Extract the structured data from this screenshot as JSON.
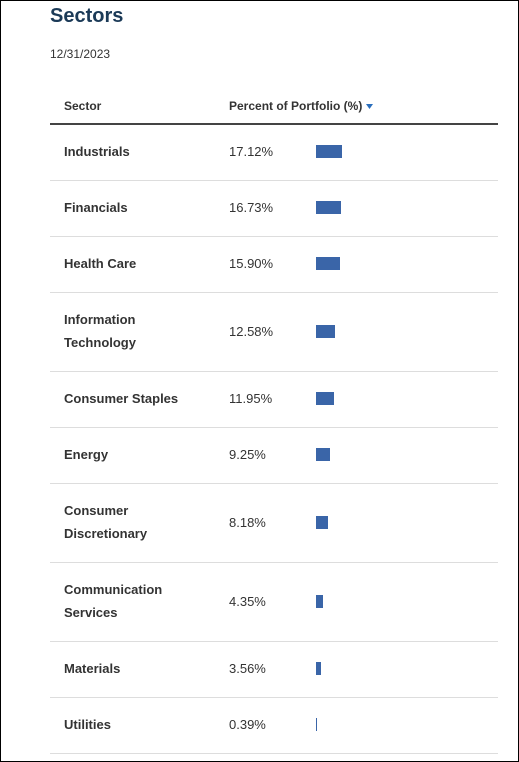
{
  "header": {
    "title": "Sectors",
    "date": "12/31/2023"
  },
  "table": {
    "columns": [
      "Sector",
      "Percent of Portfolio (%)"
    ],
    "rows": [
      {
        "sector": "Industrials",
        "value": 17.12,
        "label": "17.12%"
      },
      {
        "sector": "Financials",
        "value": 16.73,
        "label": "16.73%"
      },
      {
        "sector": "Health Care",
        "value": 15.9,
        "label": "15.90%"
      },
      {
        "sector": "Information Technology",
        "value": 12.58,
        "label": "12.58%"
      },
      {
        "sector": "Consumer Staples",
        "value": 11.95,
        "label": "11.95%"
      },
      {
        "sector": "Energy",
        "value": 9.25,
        "label": "9.25%"
      },
      {
        "sector": "Consumer Discretionary",
        "value": 8.18,
        "label": "8.18%"
      },
      {
        "sector": "Communication Services",
        "value": 4.35,
        "label": "4.35%"
      },
      {
        "sector": "Materials",
        "value": 3.56,
        "label": "3.56%"
      },
      {
        "sector": "Utilities",
        "value": 0.39,
        "label": "0.39%"
      }
    ]
  }
}
